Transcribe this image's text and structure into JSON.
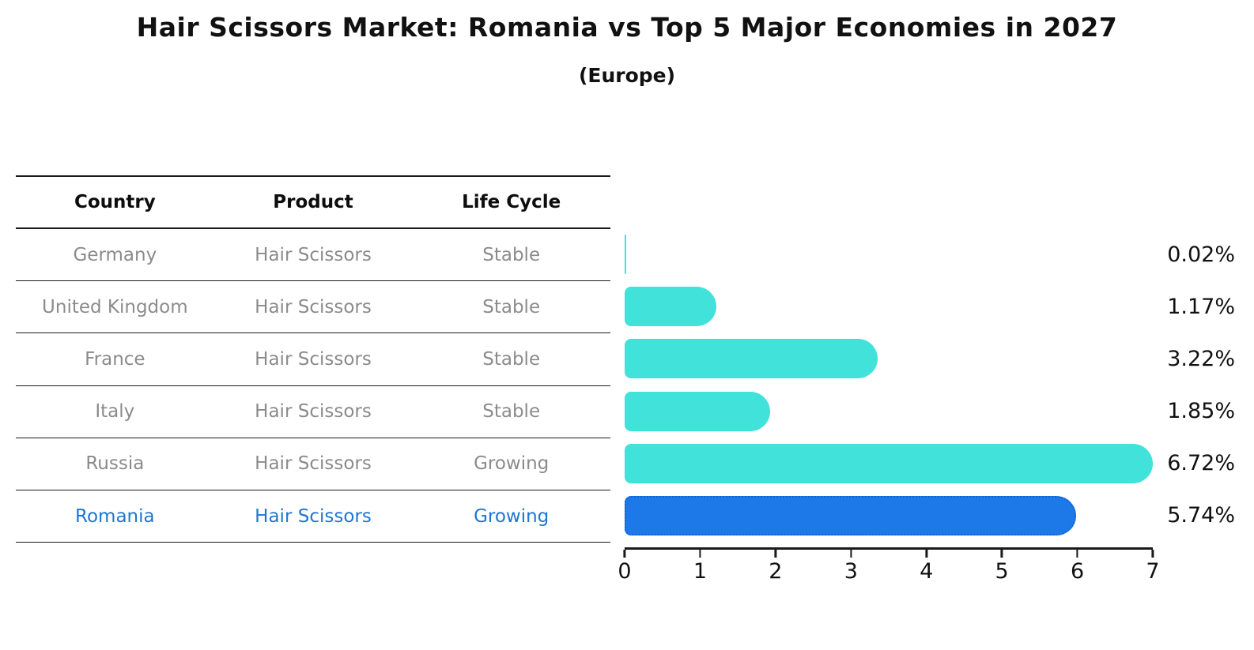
{
  "title": "Hair Scissors Market: Romania vs Top 5 Major Economies in 2027",
  "subtitle": "(Europe)",
  "table": {
    "columns": [
      "Country",
      "Product",
      "Life Cycle"
    ],
    "rows": [
      {
        "country": "Germany",
        "product": "Hair Scissors",
        "life_cycle": "Stable"
      },
      {
        "country": "United Kingdom",
        "product": "Hair Scissors",
        "life_cycle": "Stable"
      },
      {
        "country": "France",
        "product": "Hair Scissors",
        "life_cycle": "Stable"
      },
      {
        "country": "Italy",
        "product": "Hair Scissors",
        "life_cycle": "Stable"
      },
      {
        "country": "Russia",
        "product": "Hair Scissors",
        "life_cycle": "Growing"
      },
      {
        "country": "Romania",
        "product": "Hair Scissors",
        "life_cycle": "Growing"
      }
    ],
    "highlighted_row": "Romania"
  },
  "chart_data": {
    "type": "bar",
    "orientation": "horizontal",
    "title": "Hair Scissors Market: Romania vs Top 5 Major Economies in 2027 (Europe)",
    "categories": [
      "Germany",
      "United Kingdom",
      "France",
      "Italy",
      "Russia",
      "Romania"
    ],
    "values": [
      0.02,
      1.17,
      3.22,
      1.85,
      6.72,
      5.74
    ],
    "value_labels": [
      "0.02%",
      "1.17%",
      "3.22%",
      "1.85%",
      "6.72%",
      "5.74%"
    ],
    "unit": "%",
    "x_ticks": [
      "0",
      "1",
      "2",
      "3",
      "4",
      "5",
      "6",
      "7"
    ],
    "xlim": [
      0,
      7
    ],
    "grid": false,
    "legend": false,
    "highlight_index": 5
  },
  "colors": {
    "bar": "#40E2DA",
    "highlight-bar": "#1D79E8",
    "highlight-border": "#0E63D6",
    "highlight-text": "#1F76CF",
    "text": "#111111",
    "muted-text": "#8B8B8B",
    "line": "#1A1A1A"
  }
}
